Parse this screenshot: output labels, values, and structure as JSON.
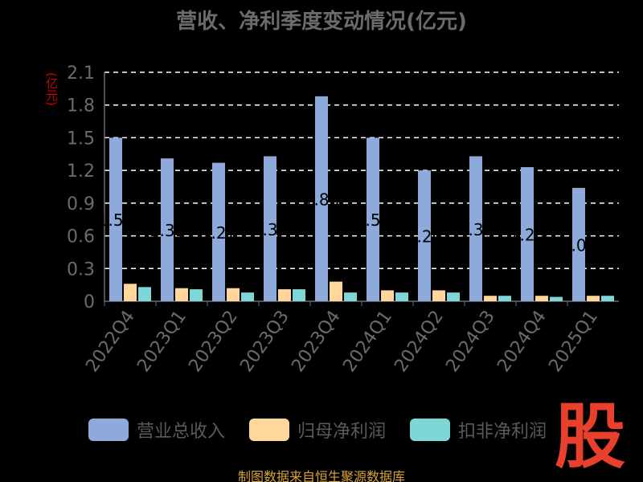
{
  "title": "营收、净利季度变动情况(亿元)",
  "unit_label": "(亿元)",
  "source_text": "制图数据来自恒生聚源数据库",
  "watermark": "股",
  "chart_data": {
    "type": "bar",
    "categories": [
      "2022Q4",
      "2023Q1",
      "2023Q2",
      "2023Q3",
      "2023Q4",
      "2024Q1",
      "2024Q2",
      "2024Q3",
      "2024Q4",
      "2025Q1"
    ],
    "series": [
      {
        "name": "营业总收入",
        "color": "#8eaadb",
        "values": [
          1.5,
          1.31,
          1.27,
          1.33,
          1.88,
          1.5,
          1.2,
          1.33,
          1.23,
          1.04
        ],
        "labels": [
          "1.50",
          "1.31",
          "1.27",
          "1.33",
          "1.88",
          "1.50",
          "1.20",
          "1.33",
          "1.23",
          "1.04"
        ]
      },
      {
        "name": "归母净利润",
        "color": "#ffd79a",
        "values": [
          0.16,
          0.12,
          0.12,
          0.11,
          0.18,
          0.1,
          0.1,
          0.05,
          0.05,
          0.05
        ]
      },
      {
        "name": "扣非净利润",
        "color": "#7fd6d6",
        "values": [
          0.13,
          0.11,
          0.08,
          0.11,
          0.08,
          0.08,
          0.08,
          0.05,
          0.04,
          0.05
        ]
      }
    ],
    "ylim": [
      0,
      2.1
    ],
    "yticks": [
      "0",
      "0.3",
      "0.6",
      "0.9",
      "1.2",
      "1.5",
      "1.8",
      "2.1"
    ],
    "grid": true,
    "legend": "bottom"
  }
}
